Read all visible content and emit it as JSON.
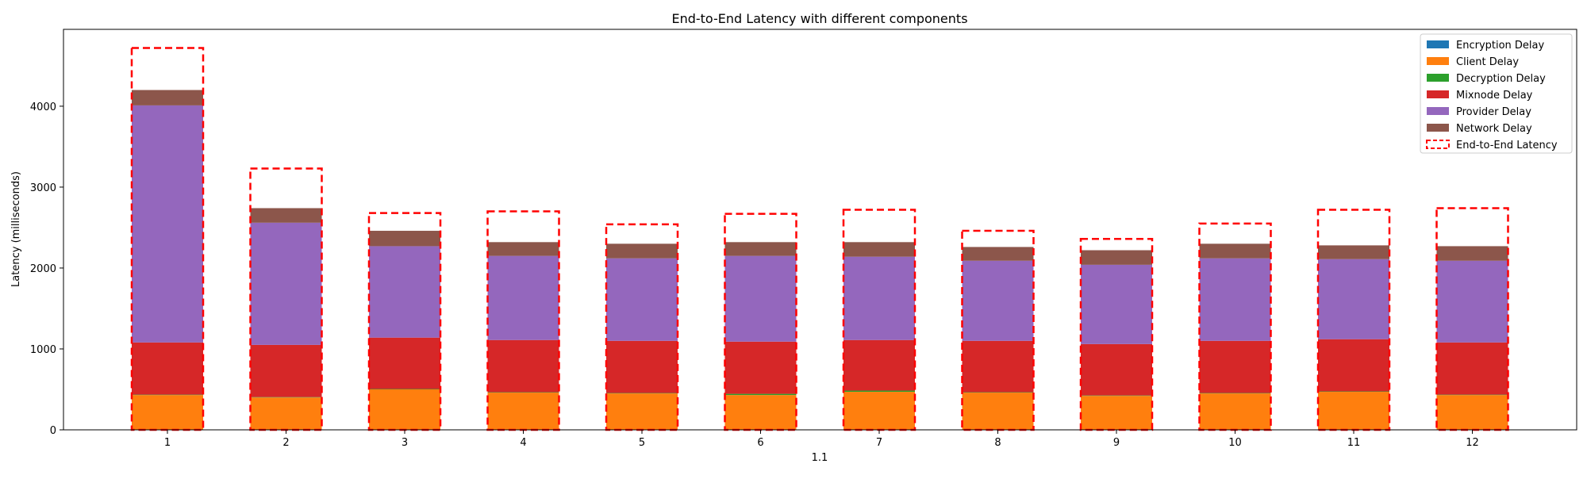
{
  "chart_data": {
    "type": "bar",
    "title": "End-to-End Latency with different components",
    "xlabel": "1.1",
    "ylabel": "Latency (milliseconds)",
    "categories": [
      "1",
      "2",
      "3",
      "4",
      "5",
      "6",
      "7",
      "8",
      "9",
      "10",
      "11",
      "12"
    ],
    "ylim": [
      0,
      4950
    ],
    "yticks": [
      0,
      1000,
      2000,
      3000,
      4000
    ],
    "stacked": true,
    "grid": false,
    "legend_position": "top-right",
    "series": [
      {
        "name": "Encryption Delay",
        "color": "#1f77b4",
        "values": [
          3,
          3,
          3,
          3,
          3,
          3,
          3,
          3,
          3,
          3,
          3,
          3
        ]
      },
      {
        "name": "Client Delay",
        "color": "#ff7f0e",
        "values": [
          427,
          397,
          497,
          457,
          447,
          427,
          467,
          457,
          417,
          447,
          467,
          427
        ]
      },
      {
        "name": "Decryption Delay",
        "color": "#2ca02c",
        "values": [
          5,
          5,
          5,
          5,
          5,
          15,
          15,
          5,
          5,
          5,
          5,
          5
        ]
      },
      {
        "name": "Mixnode Delay",
        "color": "#d62728",
        "values": [
          645,
          645,
          635,
          645,
          645,
          645,
          625,
          635,
          635,
          645,
          645,
          645
        ]
      },
      {
        "name": "Provider Delay",
        "color": "#9467bd",
        "values": [
          2930,
          1510,
          1130,
          1040,
          1020,
          1060,
          1030,
          990,
          980,
          1020,
          990,
          1010
        ]
      },
      {
        "name": "Network Delay",
        "color": "#8c564b",
        "values": [
          190,
          180,
          190,
          170,
          180,
          170,
          180,
          170,
          180,
          180,
          170,
          180
        ]
      }
    ],
    "end_to_end": {
      "name": "End-to-End Latency",
      "color": "#ff0000",
      "values": [
        4720,
        3230,
        2680,
        2700,
        2540,
        2670,
        2720,
        2460,
        2360,
        2550,
        2720,
        2740
      ]
    }
  }
}
